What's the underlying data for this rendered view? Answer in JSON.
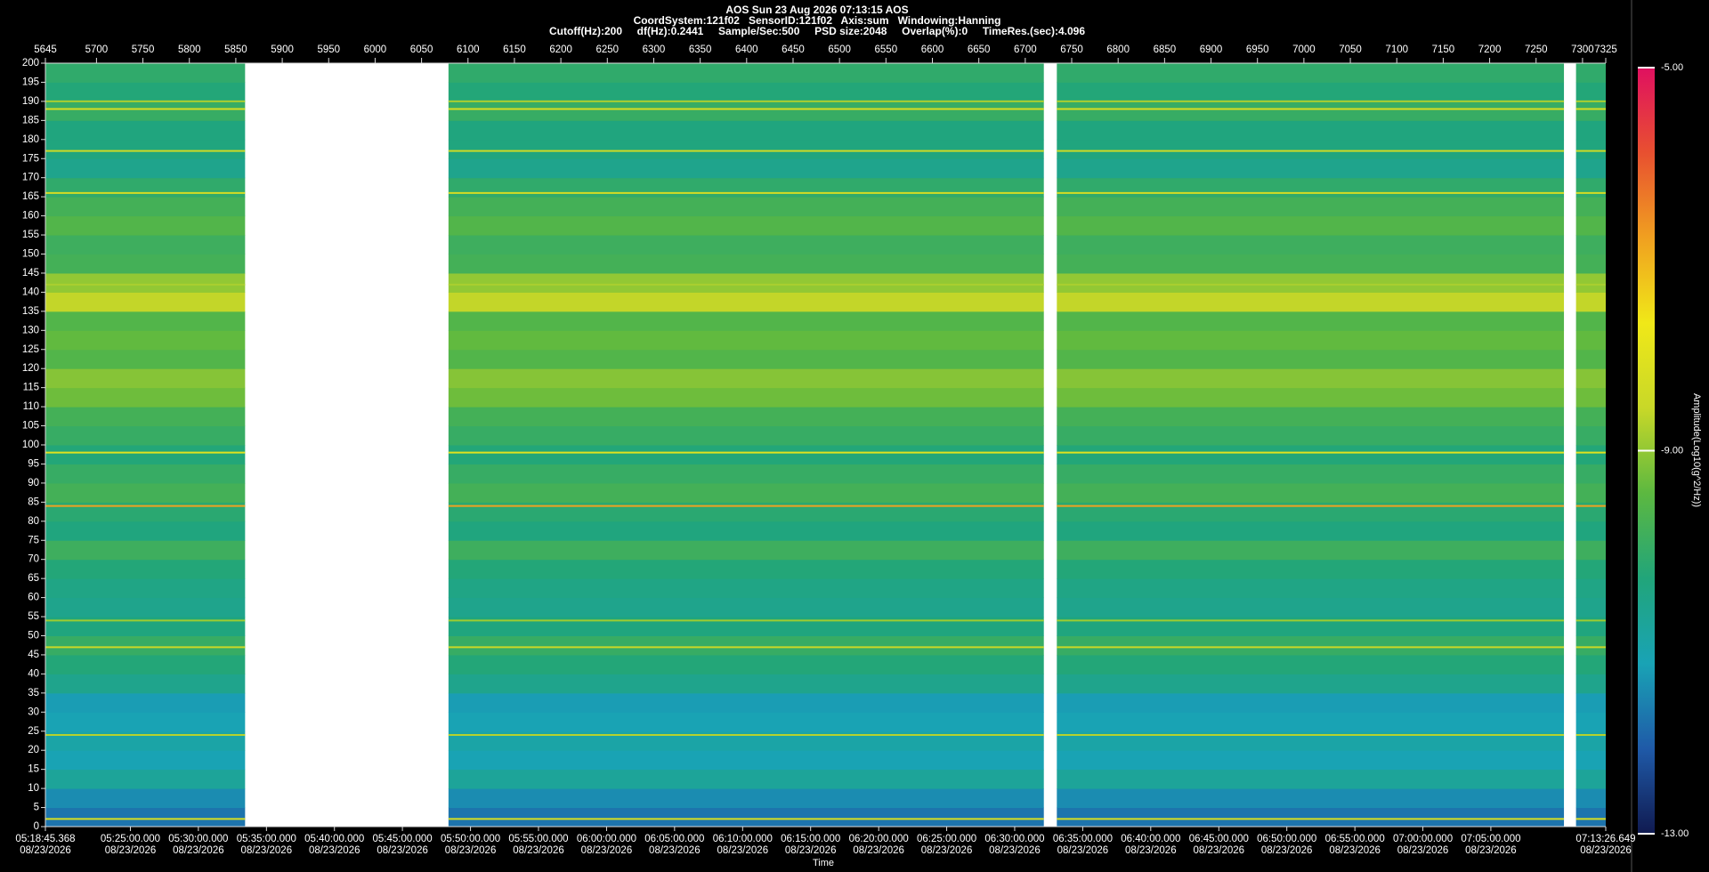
{
  "chart_data": {
    "type": "heatmap",
    "title": "AOS  Sun 23 Aug 2026 07:13:15  AOS",
    "subtitle": [
      "CoordSystem:121f02   SensorID:121f02   Axis:sum   Windowing:Hanning",
      "Cutoff(Hz):200     df(Hz):0.2441     Sample/Sec:500     PSD size:2048     Overlap(%):0     TimeRes.(sec):4.096"
    ],
    "xlim": [
      5645,
      7325
    ],
    "xticks": [
      5645,
      5700,
      5750,
      5800,
      5850,
      5900,
      5950,
      6000,
      6050,
      6100,
      6150,
      6200,
      6250,
      6300,
      6350,
      6400,
      6450,
      6500,
      6550,
      6600,
      6650,
      6700,
      6750,
      6800,
      6850,
      6900,
      6950,
      7000,
      7050,
      7100,
      7150,
      7200,
      7250,
      7300,
      7325
    ],
    "x2label": "Time",
    "x2ticks": [
      {
        "value": 5645,
        "label": "05:18:45.368",
        "date": "08/23/2026"
      },
      {
        "value": 5736.5,
        "label": "05:25:00.000",
        "date": "08/23/2026"
      },
      {
        "value": 5809.7,
        "label": "05:30:00.000",
        "date": "08/23/2026"
      },
      {
        "value": 5883.0,
        "label": "05:35:00.000",
        "date": "08/23/2026"
      },
      {
        "value": 5956.2,
        "label": "05:40:00.000",
        "date": "08/23/2026"
      },
      {
        "value": 6029.4,
        "label": "05:45:00.000",
        "date": "08/23/2026"
      },
      {
        "value": 6102.7,
        "label": "05:50:00.000",
        "date": "08/23/2026"
      },
      {
        "value": 6175.9,
        "label": "05:55:00.000",
        "date": "08/23/2026"
      },
      {
        "value": 6249.2,
        "label": "06:00:00.000",
        "date": "08/23/2026"
      },
      {
        "value": 6322.4,
        "label": "06:05:00.000",
        "date": "08/23/2026"
      },
      {
        "value": 6395.7,
        "label": "06:10:00.000",
        "date": "08/23/2026"
      },
      {
        "value": 6468.9,
        "label": "06:15:00.000",
        "date": "08/23/2026"
      },
      {
        "value": 6542.2,
        "label": "06:20:00.000",
        "date": "08/23/2026"
      },
      {
        "value": 6615.4,
        "label": "06:25:00.000",
        "date": "08/23/2026"
      },
      {
        "value": 6688.6,
        "label": "06:30:00.000",
        "date": "08/23/2026"
      },
      {
        "value": 6761.9,
        "label": "06:35:00.000",
        "date": "08/23/2026"
      },
      {
        "value": 6835.1,
        "label": "06:40:00.000",
        "date": "08/23/2026"
      },
      {
        "value": 6908.4,
        "label": "06:45:00.000",
        "date": "08/23/2026"
      },
      {
        "value": 6981.6,
        "label": "06:50:00.000",
        "date": "08/23/2026"
      },
      {
        "value": 7054.9,
        "label": "06:55:00.000",
        "date": "08/23/2026"
      },
      {
        "value": 7128.1,
        "label": "07:00:00.000",
        "date": "08/23/2026"
      },
      {
        "value": 7201.3,
        "label": "07:05:00.000",
        "date": "08/23/2026"
      },
      {
        "value": 7325,
        "label": "07:13:26.649",
        "date": "08/23/2026"
      }
    ],
    "ylim": [
      0,
      200
    ],
    "yticks": [
      0,
      5,
      10,
      15,
      20,
      25,
      30,
      35,
      40,
      45,
      50,
      55,
      60,
      65,
      70,
      75,
      80,
      85,
      90,
      95,
      100,
      105,
      110,
      115,
      120,
      125,
      130,
      135,
      140,
      145,
      150,
      155,
      160,
      165,
      170,
      175,
      180,
      185,
      190,
      195,
      200
    ],
    "segments": [
      [
        5645,
        5860
      ],
      [
        6079,
        6720
      ],
      [
        6734,
        7280
      ],
      [
        7293,
        7325
      ]
    ],
    "freq_bins": [
      0,
      5,
      10,
      15,
      20,
      25,
      30,
      35,
      40,
      45,
      50,
      55,
      60,
      65,
      70,
      75,
      80,
      85,
      90,
      95,
      100,
      105,
      110,
      115,
      120,
      125,
      130,
      135,
      140,
      145,
      150,
      155,
      160,
      165,
      170,
      175,
      180,
      185,
      190,
      195,
      200
    ],
    "amplitude": [
      -11.8,
      -11.5,
      -10.8,
      -11.2,
      -11.0,
      -11.2,
      -11.3,
      -10.6,
      -10.3,
      -10.0,
      -10.4,
      -10.6,
      -10.5,
      -10.3,
      -9.9,
      -10.4,
      -10.2,
      -9.8,
      -10.0,
      -10.3,
      -10.0,
      -9.8,
      -9.3,
      -9.1,
      -9.6,
      -9.4,
      -9.6,
      -8.6,
      -9.0,
      -9.8,
      -9.9,
      -9.6,
      -9.8,
      -10.1,
      -10.6,
      -10.4,
      -10.4,
      -10.0,
      -10.3,
      -10.1
    ],
    "lines": [
      {
        "freq": 190,
        "amplitude": -8.8
      },
      {
        "freq": 188,
        "amplitude": -8.2
      },
      {
        "freq": 177,
        "amplitude": -8.5
      },
      {
        "freq": 166,
        "amplitude": -8.3
      },
      {
        "freq": 142,
        "amplitude": -8.8
      },
      {
        "freq": 98,
        "amplitude": -8.0
      },
      {
        "freq": 84,
        "amplitude": -6.8
      },
      {
        "freq": 54,
        "amplitude": -8.9
      },
      {
        "freq": 47,
        "amplitude": -8.5
      },
      {
        "freq": 24,
        "amplitude": -8.7
      },
      {
        "freq": 2,
        "amplitude": -8.2
      }
    ],
    "zlim": [
      -13,
      -5
    ],
    "zticks": [
      {
        "value": -5,
        "label": "-5.00"
      },
      {
        "value": -9,
        "label": "-9.00"
      },
      {
        "value": -13,
        "label": "-13.00"
      }
    ],
    "zlabel": "Amplitude(Log10(g^2/Hz))",
    "colormap": [
      "#101a50",
      "#1f5aa8",
      "#19a3b5",
      "#21a57a",
      "#5cb840",
      "#c8d828",
      "#f0e818",
      "#f0a020",
      "#e85030",
      "#e01060"
    ]
  }
}
